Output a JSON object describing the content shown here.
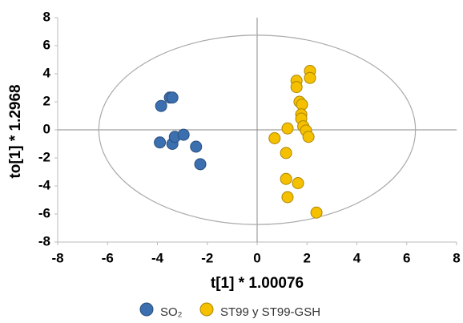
{
  "chart_data": {
    "type": "scatter",
    "xlabel": "t[1] * 1.00076",
    "ylabel": "to[1] * 1.2968",
    "xlim": [
      -8,
      8
    ],
    "xticks": [
      -8,
      -6,
      -4,
      -2,
      0,
      2,
      4,
      6,
      8
    ],
    "ylim": [
      -8,
      8
    ],
    "yticks": [
      -8,
      -6,
      -4,
      -2,
      0,
      2,
      4,
      6,
      8
    ],
    "ellipse": {
      "rx": 6.35,
      "ry": 6.75
    },
    "series": [
      {
        "name": "SO₂",
        "color": "#3b6fb0",
        "x": [
          -3.85,
          -3.5,
          -3.4,
          -3.9,
          -3.4,
          -3.3,
          -2.95,
          -2.45,
          -2.28
        ],
        "values": [
          1.7,
          2.3,
          2.3,
          -0.9,
          -1.0,
          -0.5,
          -0.35,
          -1.2,
          -2.45
        ]
      },
      {
        "name": "ST99 y ST99-GSH",
        "color": "#f5c000",
        "x": [
          1.58,
          1.58,
          2.12,
          2.12,
          1.7,
          1.8,
          1.77,
          1.77,
          1.85,
          1.96,
          2.06,
          1.22,
          0.7,
          1.16,
          1.16,
          1.64,
          1.22,
          2.38
        ],
        "values": [
          3.5,
          3.05,
          4.2,
          3.7,
          2.0,
          1.8,
          1.1,
          0.8,
          0.25,
          -0.05,
          -0.5,
          0.1,
          -0.6,
          -1.65,
          -3.5,
          -3.8,
          -4.8,
          -5.9
        ]
      }
    ]
  }
}
